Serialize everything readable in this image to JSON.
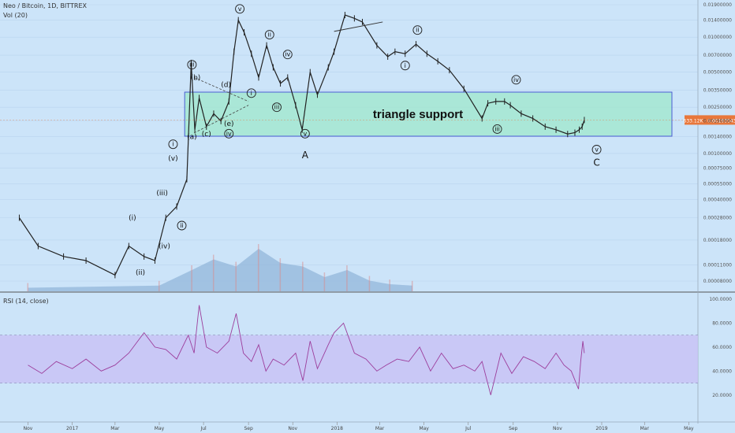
{
  "header": {
    "symbol_line": "Neo / Bitcoin, 1D, BITTREX",
    "volume_line": "Vol (20)",
    "rsi_line": "RSI (14, close)"
  },
  "price_tag": {
    "text": "633.12K · 0.00193543",
    "color": "#e8773b"
  },
  "colors": {
    "background": "#cce4f9",
    "candles": "#222222",
    "volume": "#8fb3d9",
    "support_box_fill": "#9fe8cc",
    "support_box_stroke": "#1f2ec8",
    "rsi_band": "#c8c0f5",
    "rsi_line": "#9c3e9c"
  },
  "chart_data": [
    {
      "type": "candlestick",
      "title": "Neo / Bitcoin, 1D, BITTREX",
      "scale": "log",
      "y_ticks": [
        "0.01900000",
        "0.01400000",
        "0.01000000",
        "0.00700000",
        "0.00500000",
        "0.00350000",
        "0.00250000",
        "0.00190000",
        "0.00140000",
        "0.00100000",
        "0.00075000",
        "0.00055000",
        "0.00040000",
        "0.00028000",
        "0.00018000",
        "0.00011000",
        "0.00008000"
      ],
      "x_ticks": [
        "Nov",
        "2017",
        "Mar",
        "May",
        "Jul",
        "Sep",
        "Nov",
        "2018",
        "Mar",
        "May",
        "Jul",
        "Sep",
        "Nov",
        "2019",
        "Mar",
        "May"
      ],
      "x": [
        "2016-10-20",
        "2016-11-15",
        "2016-12-20",
        "2017-01-20",
        "2017-03-01",
        "2017-03-20",
        "2017-04-10",
        "2017-04-25",
        "2017-05-10",
        "2017-05-25",
        "2017-06-08",
        "2017-06-14",
        "2017-06-19",
        "2017-06-25",
        "2017-07-05",
        "2017-07-15",
        "2017-07-25",
        "2017-08-05",
        "2017-08-12",
        "2017-08-18",
        "2017-08-26",
        "2017-09-05",
        "2017-09-15",
        "2017-09-26",
        "2017-10-05",
        "2017-10-15",
        "2017-10-25",
        "2017-11-05",
        "2017-11-14",
        "2017-11-25",
        "2017-12-05",
        "2017-12-20",
        "2017-12-28",
        "2018-01-12",
        "2018-01-25",
        "2018-02-05",
        "2018-02-25",
        "2018-03-12",
        "2018-03-22",
        "2018-04-05",
        "2018-04-20",
        "2018-05-05",
        "2018-05-20",
        "2018-06-05",
        "2018-06-25",
        "2018-07-20",
        "2018-07-28",
        "2018-08-08",
        "2018-08-20",
        "2018-08-28",
        "2018-09-12",
        "2018-09-28",
        "2018-10-15",
        "2018-10-30",
        "2018-11-15",
        "2018-11-25",
        "2018-12-01",
        "2018-12-05",
        "2018-12-08"
      ],
      "close": [
        0.00028,
        0.00016,
        0.00013,
        0.00012,
        9e-05,
        0.00016,
        0.00013,
        0.00012,
        0.00028,
        0.00035,
        0.0006,
        0.006,
        0.0016,
        0.003,
        0.0017,
        0.0022,
        0.0019,
        0.0028,
        0.0075,
        0.014,
        0.011,
        0.0072,
        0.0045,
        0.0085,
        0.0055,
        0.004,
        0.0045,
        0.0026,
        0.0016,
        0.005,
        0.0032,
        0.0055,
        0.0075,
        0.0155,
        0.0145,
        0.0135,
        0.0085,
        0.0068,
        0.0075,
        0.0072,
        0.0087,
        0.0072,
        0.0062,
        0.0052,
        0.0036,
        0.002,
        0.0027,
        0.0028,
        0.0028,
        0.0026,
        0.0022,
        0.002,
        0.0017,
        0.0016,
        0.00147,
        0.00151,
        0.0016,
        0.0017,
        0.00194
      ]
    },
    {
      "type": "area",
      "title": "Vol (20)",
      "x": [
        "2016-11-01",
        "2017-05-01",
        "2017-06-15",
        "2017-07-15",
        "2017-08-15",
        "2017-09-15",
        "2017-10-15",
        "2017-11-15",
        "2017-12-15",
        "2018-01-15",
        "2018-02-15",
        "2018-03-15",
        "2018-04-15"
      ],
      "values": [
        5,
        8,
        30,
        45,
        35,
        60,
        40,
        35,
        20,
        30,
        15,
        10,
        8
      ]
    },
    {
      "type": "line",
      "title": "RSI (14, close)",
      "y_ticks": [
        "100.0000",
        "80.0000",
        "60.0000",
        "40.0000",
        "20.0000"
      ],
      "ylim": [
        10,
        100
      ],
      "band": [
        30,
        70
      ],
      "x": [
        "2016-11-01",
        "2016-11-20",
        "2016-12-10",
        "2017-01-01",
        "2017-01-20",
        "2017-02-10",
        "2017-03-01",
        "2017-03-20",
        "2017-04-10",
        "2017-04-25",
        "2017-05-10",
        "2017-05-25",
        "2017-06-10",
        "2017-06-18",
        "2017-06-25",
        "2017-07-05",
        "2017-07-20",
        "2017-08-05",
        "2017-08-15",
        "2017-08-25",
        "2017-09-05",
        "2017-09-15",
        "2017-09-25",
        "2017-10-05",
        "2017-10-20",
        "2017-11-05",
        "2017-11-15",
        "2017-11-25",
        "2017-12-05",
        "2017-12-20",
        "2017-12-28",
        "2018-01-10",
        "2018-01-25",
        "2018-02-10",
        "2018-02-25",
        "2018-03-10",
        "2018-03-25",
        "2018-04-10",
        "2018-04-25",
        "2018-05-10",
        "2018-05-25",
        "2018-06-10",
        "2018-06-25",
        "2018-07-10",
        "2018-07-20",
        "2018-08-01",
        "2018-08-15",
        "2018-08-30",
        "2018-09-15",
        "2018-09-30",
        "2018-10-15",
        "2018-10-30",
        "2018-11-10",
        "2018-11-20",
        "2018-11-30",
        "2018-12-03",
        "2018-12-06",
        "2018-12-08"
      ],
      "values": [
        45,
        38,
        48,
        42,
        50,
        40,
        45,
        55,
        72,
        60,
        58,
        50,
        70,
        55,
        95,
        60,
        55,
        65,
        88,
        55,
        48,
        62,
        40,
        50,
        45,
        55,
        32,
        65,
        42,
        62,
        72,
        80,
        55,
        50,
        40,
        45,
        50,
        48,
        60,
        40,
        55,
        42,
        45,
        40,
        48,
        20,
        55,
        38,
        52,
        48,
        42,
        55,
        45,
        40,
        25,
        48,
        65,
        55
      ]
    }
  ],
  "annotations": {
    "support_label": "triangle support",
    "waves": [
      {
        "text": "v",
        "date": "2017-08-20",
        "price": 0.0175,
        "circled": true
      },
      {
        "text": "ii",
        "date": "2017-09-30",
        "price": 0.0105,
        "circled": true
      },
      {
        "text": "iv",
        "date": "2017-10-25",
        "price": 0.0071,
        "circled": true
      },
      {
        "text": "ii",
        "date": "2018-04-22",
        "price": 0.0115,
        "circled": true
      },
      {
        "text": "i",
        "date": "2018-04-05",
        "price": 0.0057,
        "circled": true
      },
      {
        "text": "iii",
        "date": "2017-06-15",
        "price": 0.0058,
        "circled": true
      },
      {
        "text": "(b)",
        "date": "2017-06-20",
        "price": 0.0045,
        "circled": false
      },
      {
        "text": "(d)",
        "date": "2017-08-01",
        "price": 0.0039,
        "circled": false
      },
      {
        "text": "i",
        "date": "2017-09-05",
        "price": 0.0033,
        "circled": true
      },
      {
        "text": "iii",
        "date": "2017-10-10",
        "price": 0.0025,
        "circled": true
      },
      {
        "text": "(e)",
        "date": "2017-08-05",
        "price": 0.0018,
        "circled": false
      },
      {
        "text": "(a)",
        "date": "2017-06-15",
        "price": 0.0014,
        "circled": false
      },
      {
        "text": "(c)",
        "date": "2017-07-05",
        "price": 0.00148,
        "circled": false
      },
      {
        "text": "iv",
        "date": "2017-08-05",
        "price": 0.00148,
        "circled": true
      },
      {
        "text": "v",
        "date": "2017-11-18",
        "price": 0.00148,
        "circled": true
      },
      {
        "text": "A",
        "date": "2017-11-18",
        "price": 0.00095,
        "circled": false
      },
      {
        "text": "iv",
        "date": "2018-09-05",
        "price": 0.0043,
        "circled": true
      },
      {
        "text": "iii",
        "date": "2018-08-10",
        "price": 0.00162,
        "circled": true
      },
      {
        "text": "v",
        "date": "2018-12-25",
        "price": 0.00108,
        "circled": true
      },
      {
        "text": "C",
        "date": "2018-12-25",
        "price": 0.00082,
        "circled": false
      },
      {
        "text": "i",
        "date": "2017-05-20",
        "price": 0.0012,
        "circled": true
      },
      {
        "text": "(v)",
        "date": "2017-05-20",
        "price": 0.00091,
        "circled": false
      },
      {
        "text": "(iii)",
        "date": "2017-05-05",
        "price": 0.00046,
        "circled": false
      },
      {
        "text": "ii",
        "date": "2017-06-01",
        "price": 0.00024,
        "circled": true
      },
      {
        "text": "(i)",
        "date": "2017-03-25",
        "price": 0.00028,
        "circled": false
      },
      {
        "text": "(iv)",
        "date": "2017-05-08",
        "price": 0.00016,
        "circled": false
      },
      {
        "text": "(ii)",
        "date": "2017-04-05",
        "price": 9.5e-05,
        "circled": false
      }
    ]
  }
}
